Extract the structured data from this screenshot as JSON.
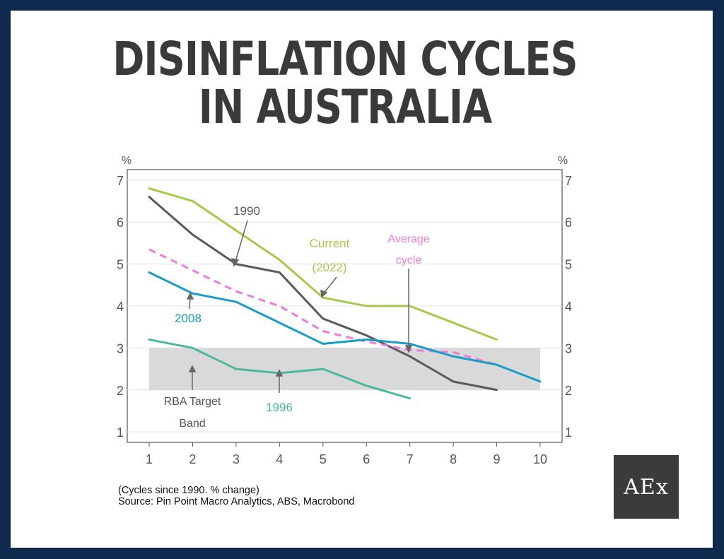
{
  "title": {
    "line1": "DISINFLATION CYCLES",
    "line2": "IN AUSTRALIA"
  },
  "footnote": {
    "line1": "(Cycles since 1990. % change)",
    "line2": "Source: Pin Point Macro Analytics, ABS, Macrobond"
  },
  "logo": {
    "text": "AEx"
  },
  "colors": {
    "page_border": "#0f2a4d",
    "series_1990": "#5a5a5a",
    "series_current": "#a6c94c",
    "series_average": "#f07be0",
    "series_2008": "#1a9cc6",
    "series_1996": "#4cb8a0",
    "target_band": "#d9d9d9"
  },
  "chart_data": {
    "type": "line",
    "x": [
      1,
      2,
      3,
      4,
      5,
      6,
      7,
      8,
      9,
      10
    ],
    "xlim": [
      1,
      10
    ],
    "ylim": [
      0.75,
      7.25
    ],
    "yticks": [
      1,
      2,
      3,
      4,
      5,
      6,
      7
    ],
    "yunit_left": "%",
    "yunit_right": "%",
    "grid": true,
    "band": {
      "label_line1": "RBA Target",
      "label_line2": "Band",
      "from": 2,
      "to": 3
    },
    "series": [
      {
        "name": "1990",
        "color": "#5a5a5a",
        "style": "solid",
        "values": [
          6.6,
          5.7,
          5.0,
          4.8,
          3.7,
          3.3,
          2.8,
          2.2,
          2.0,
          null
        ]
      },
      {
        "name": "Current (2022)",
        "label_line1": "Current",
        "label_line2": "(2022)",
        "color": "#a6c94c",
        "style": "solid",
        "values": [
          6.8,
          6.5,
          5.8,
          5.1,
          4.2,
          4.0,
          4.0,
          3.6,
          3.2,
          null
        ]
      },
      {
        "name": "Average cycle",
        "label_line1": "Average",
        "label_line2": "cycle",
        "color": "#f07be0",
        "style": "dashed",
        "values": [
          5.35,
          4.85,
          4.35,
          4.0,
          3.4,
          3.15,
          2.95,
          2.9,
          2.6,
          null
        ]
      },
      {
        "name": "2008",
        "color": "#1a9cc6",
        "style": "solid",
        "values": [
          4.8,
          4.3,
          4.1,
          3.6,
          3.1,
          3.2,
          3.1,
          2.8,
          2.6,
          2.2
        ]
      },
      {
        "name": "1996",
        "color": "#4cb8a0",
        "style": "solid",
        "values": [
          3.2,
          3.0,
          2.5,
          2.4,
          2.5,
          2.1,
          1.8,
          null,
          null,
          null
        ]
      }
    ]
  }
}
